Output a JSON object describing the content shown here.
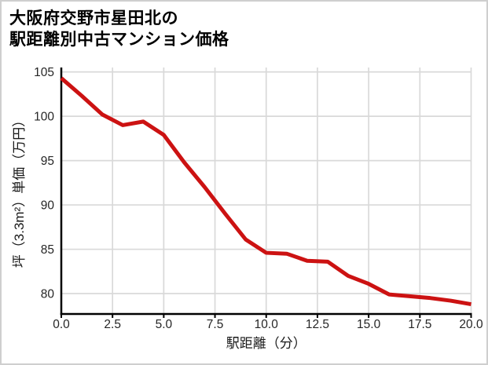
{
  "title": {
    "line1": "大阪府交野市星田北の",
    "line2": "駅距離別中古マンション価格"
  },
  "chart_data": {
    "type": "line",
    "title": "大阪府交野市星田北の駅距離別中古マンション価格",
    "xlabel": "駅距離（分）",
    "ylabel": "坪（3.3m²）単価（万円）",
    "x": [
      0,
      1,
      2,
      3,
      4,
      5,
      6,
      7,
      8,
      9,
      10,
      11,
      12,
      13,
      14,
      15,
      16,
      17,
      18,
      19,
      20
    ],
    "y": [
      104.3,
      102.3,
      100.2,
      99.0,
      99.4,
      97.9,
      94.8,
      92.0,
      89.0,
      86.1,
      84.6,
      84.5,
      83.7,
      83.6,
      82.0,
      81.1,
      79.9,
      79.7,
      79.5,
      79.2,
      78.8
    ],
    "xlim": [
      0,
      20
    ],
    "ylim": [
      77.7,
      105.5
    ],
    "x_ticks": [
      0,
      2.5,
      5,
      7.5,
      10,
      12.5,
      15,
      17.5,
      20
    ],
    "x_tick_labels": [
      "0.0",
      "2.5",
      "5.0",
      "7.5",
      "10.0",
      "12.5",
      "15.0",
      "17.5",
      "20.0"
    ],
    "y_ticks": [
      80,
      85,
      90,
      95,
      100,
      105
    ],
    "y_tick_labels": [
      "80",
      "85",
      "90",
      "95",
      "100",
      "105"
    ],
    "grid": true,
    "legend": "none",
    "colors": {
      "line": "#cc1212",
      "grid": "#d9d9d9",
      "spine": "#000000",
      "tick_text": "#262626",
      "title_text": "#000000"
    }
  }
}
